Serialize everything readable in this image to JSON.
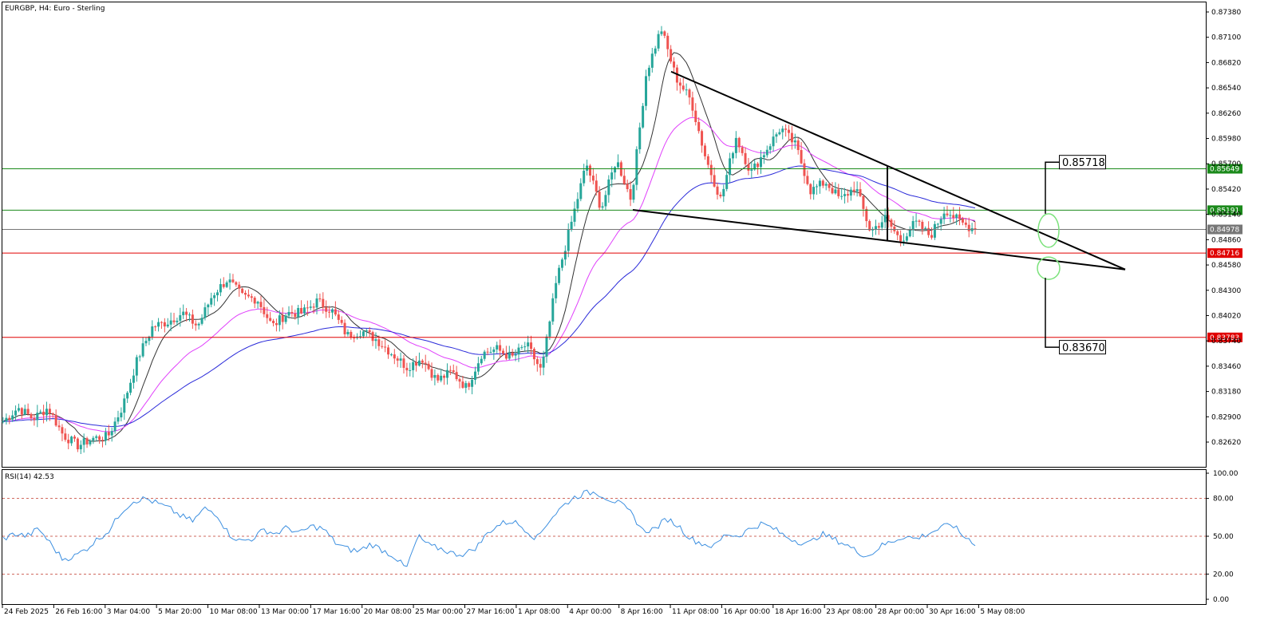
{
  "window": {
    "symbol_title": "EURGBP, H4:  Euro - Sterling",
    "rsi_title": "RSI(14) 42.53"
  },
  "colors": {
    "bull": "#26a69a",
    "bear": "#ef5350",
    "ma_fast": "#333333",
    "ma_mid": "#e040fb",
    "ma_slow": "#2a2ad9",
    "support_resist_green": "#1b8a1b",
    "support_resist_red": "#e00000",
    "current_price": "#777777",
    "rsi_line": "#3c8fe0"
  },
  "chart_data": [
    {
      "type": "candlestick",
      "symbol": "EURGBP",
      "timeframe": "H4",
      "ylim": [
        0.8244,
        0.875
      ],
      "yticks": [
        "0.87380",
        "0.87100",
        "0.86820",
        "0.86540",
        "0.86260",
        "0.85980",
        "0.85700",
        "0.85420",
        "0.85140",
        "0.84860",
        "0.84580",
        "0.84300",
        "0.84020",
        "0.83740",
        "0.83460",
        "0.83180",
        "0.82900",
        "0.82620"
      ],
      "xticks": [
        "24 Feb 2025",
        "26 Feb 16:00",
        "3 Mar 04:00",
        "5 Mar 20:00",
        "10 Mar 08:00",
        "13 Mar 00:00",
        "17 Mar 16:00",
        "20 Mar 08:00",
        "25 Mar 00:00",
        "27 Mar 16:00",
        "1 Apr 08:00",
        "4 Apr 00:00",
        "8 Apr 16:00",
        "11 Apr 08:00",
        "16 Apr 00:00",
        "18 Apr 16:00",
        "23 Apr 08:00",
        "28 Apr 00:00",
        "30 Apr 16:00",
        "5 May 08:00"
      ],
      "close_anchors": [
        0.8285,
        0.83,
        0.8288,
        0.83,
        0.827,
        0.8258,
        0.8266,
        0.8268,
        0.8302,
        0.8355,
        0.839,
        0.8395,
        0.8405,
        0.839,
        0.8425,
        0.8442,
        0.8423,
        0.842,
        0.839,
        0.8405,
        0.8405,
        0.8418,
        0.8407,
        0.838,
        0.8385,
        0.8375,
        0.836,
        0.8345,
        0.8355,
        0.833,
        0.834,
        0.8322,
        0.836,
        0.8365,
        0.8355,
        0.837,
        0.834,
        0.844,
        0.8505,
        0.857,
        0.852,
        0.8575,
        0.853,
        0.867,
        0.872,
        0.8665,
        0.864,
        0.8575,
        0.853,
        0.86,
        0.856,
        0.8585,
        0.861,
        0.859,
        0.854,
        0.855,
        0.853,
        0.8545,
        0.8495,
        0.851,
        0.8485,
        0.8505,
        0.849,
        0.852,
        0.8505,
        0.8497
      ],
      "h_levels": [
        {
          "price": "0.85649",
          "value": 0.85649,
          "color": "green"
        },
        {
          "price": "0.85191",
          "value": 0.85191,
          "color": "green"
        },
        {
          "price": "0.84978",
          "value": 0.84978,
          "color": "gray"
        },
        {
          "price": "0.84716",
          "value": 0.84716,
          "color": "red"
        },
        {
          "price": "0.83783",
          "value": 0.83783,
          "color": "red"
        }
      ],
      "targets": [
        {
          "label": "0.85718",
          "value": 0.85718
        },
        {
          "label": "0.83670",
          "value": 0.8367
        }
      ],
      "wedge": {
        "upper": [
          [
            "10 Apr 00:00",
            0.8672
          ],
          [
            "projection",
            0.8453
          ]
        ],
        "lower": [
          [
            "8 Apr 16:00",
            0.8519
          ],
          [
            "projection",
            0.8453
          ]
        ]
      },
      "moving_averages": [
        "fast",
        "mid",
        "slow"
      ]
    },
    {
      "type": "line",
      "name": "RSI(14)",
      "value": 42.53,
      "ylim": [
        0,
        100
      ],
      "yticks": [
        "100.00",
        "80.00",
        "50.00",
        "20.00",
        "0.00"
      ],
      "levels": [
        80,
        50,
        20
      ],
      "anchors": [
        48,
        52,
        50,
        56,
        44,
        32,
        34,
        40,
        48,
        55,
        70,
        78,
        80,
        76,
        72,
        66,
        62,
        72,
        68,
        52,
        46,
        48,
        55,
        52,
        57,
        52,
        58,
        56,
        45,
        40,
        38,
        44,
        39,
        34,
        24,
        50,
        42,
        40,
        36,
        36,
        42,
        54,
        60,
        62,
        56,
        48,
        62,
        72,
        80,
        84,
        85,
        80,
        76,
        68,
        54,
        56,
        64,
        58,
        48,
        44,
        42,
        52,
        50,
        56,
        60,
        56,
        50,
        46,
        44,
        52,
        48,
        44,
        38,
        34,
        42,
        46,
        50,
        48,
        52,
        56,
        60,
        50,
        45
      ]
    }
  ]
}
